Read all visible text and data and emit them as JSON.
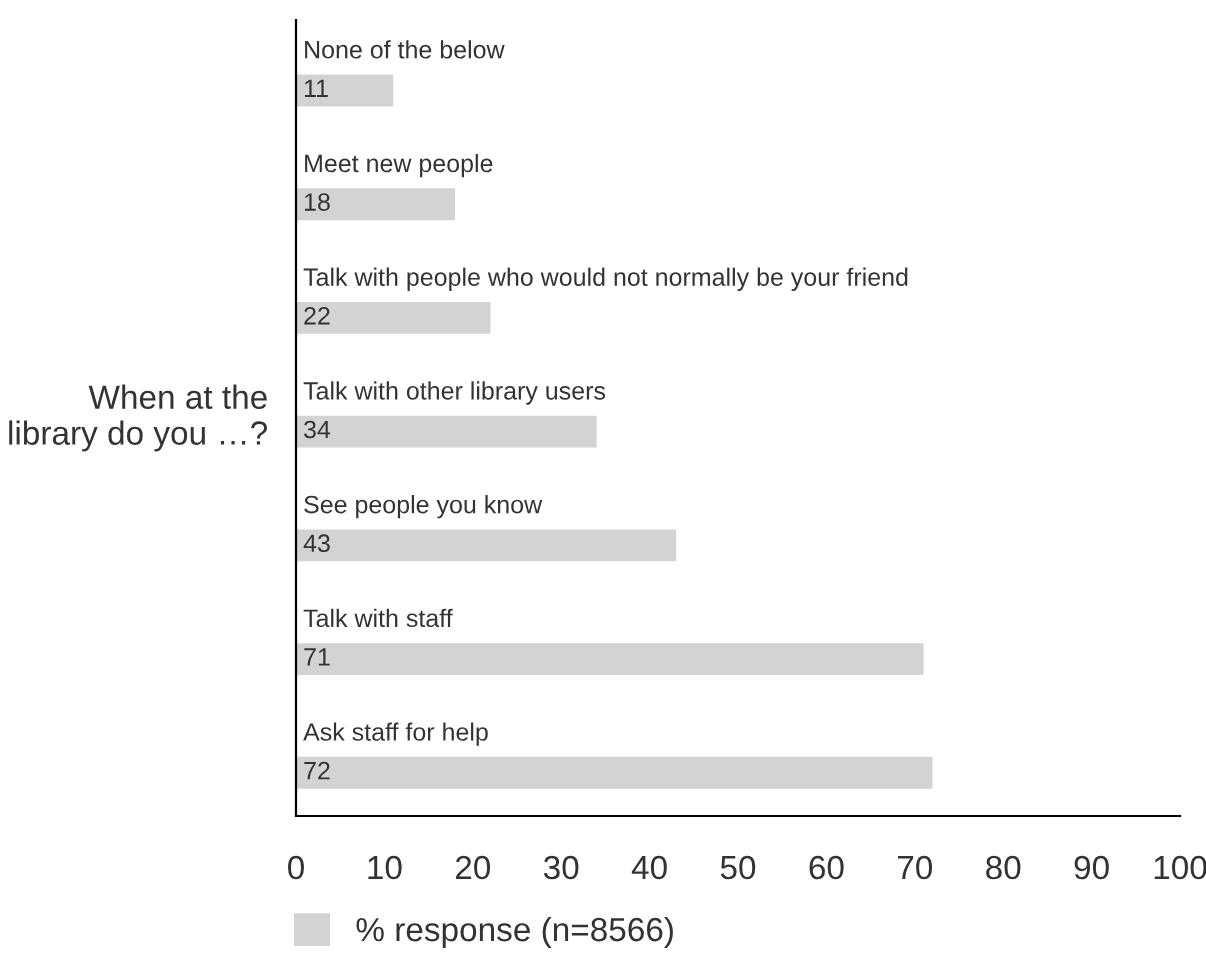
{
  "chart_data": {
    "type": "bar",
    "orientation": "horizontal",
    "ylabel": "When at the\nlibrary do you …?",
    "categories": [
      "None of the below",
      "Meet new people",
      "Talk with people who would not normally be your friend",
      "Talk with other library users",
      "See people you know",
      "Talk with staff",
      "Ask staff for help"
    ],
    "series": [
      {
        "name": "% response (n=8566)",
        "color": "#d3d3d3",
        "values": [
          11,
          18,
          22,
          34,
          43,
          71,
          72
        ]
      }
    ],
    "xlim": [
      0,
      100
    ],
    "xticks": [
      0,
      10,
      20,
      30,
      40,
      50,
      60,
      70,
      80,
      90,
      100
    ],
    "data_labels": true,
    "grid": false,
    "legend": "bottom"
  }
}
